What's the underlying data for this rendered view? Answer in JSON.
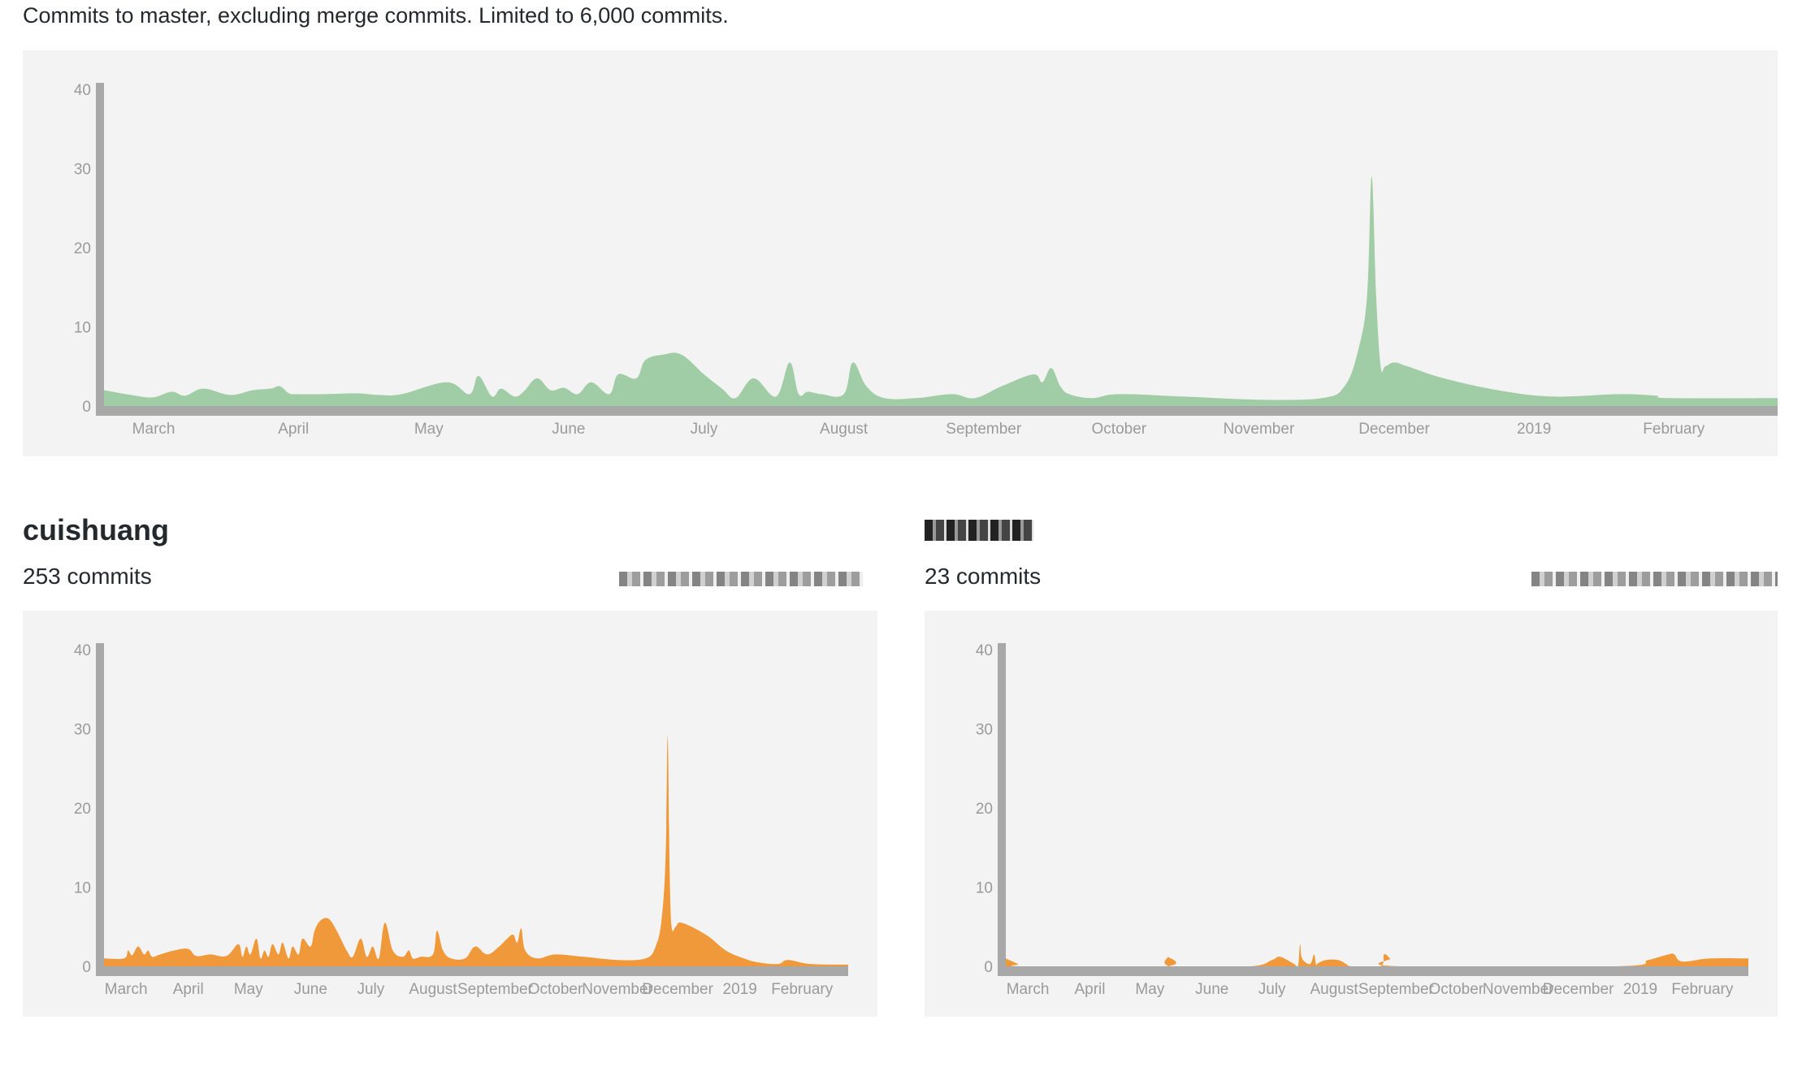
{
  "header": {
    "subtitle": "Commits to master, excluding merge commits. Limited to 6,000 commits."
  },
  "colors": {
    "main_area": "#a1cda6",
    "contributor_area": "#f0993a",
    "axis": "#a8a8a8",
    "panel_bg": "#f3f3f3"
  },
  "contributors": [
    {
      "name": "cuishuang",
      "commits_label": "253 commits"
    },
    {
      "name": "",
      "commits_label": "23 commits"
    }
  ],
  "chart_data": [
    {
      "type": "area",
      "title": "",
      "xlabel": "",
      "ylabel": "",
      "ylim": [
        0,
        40
      ],
      "yticks": [
        0,
        10,
        20,
        30,
        40
      ],
      "xlim": [
        "2018-02-18",
        "2019-02-24"
      ],
      "xticks": [
        "March",
        "April",
        "May",
        "June",
        "July",
        "August",
        "September",
        "October",
        "November",
        "December",
        "2019",
        "February"
      ],
      "grid": false,
      "series": [
        {
          "x": [
            "2018-02-18",
            "2018-02-25",
            "2018-03-01",
            "2018-03-05",
            "2018-03-08",
            "2018-03-12",
            "2018-03-18",
            "2018-03-23",
            "2018-03-27",
            "2018-03-29",
            "2018-03-31",
            "2018-04-02",
            "2018-04-08",
            "2018-04-15",
            "2018-04-20",
            "2018-04-25",
            "2018-05-05",
            "2018-05-10",
            "2018-05-12",
            "2018-05-15",
            "2018-05-17",
            "2018-05-20",
            "2018-05-22",
            "2018-05-25",
            "2018-05-28",
            "2018-05-31",
            "2018-06-03",
            "2018-06-06",
            "2018-06-10",
            "2018-06-12",
            "2018-06-16",
            "2018-06-18",
            "2018-06-22",
            "2018-06-26",
            "2018-07-01",
            "2018-07-05",
            "2018-07-08",
            "2018-07-12",
            "2018-07-17",
            "2018-07-20",
            "2018-07-22",
            "2018-07-24",
            "2018-07-27",
            "2018-08-01",
            "2018-08-03",
            "2018-08-06",
            "2018-08-10",
            "2018-08-17",
            "2018-08-25",
            "2018-08-30",
            "2018-09-05",
            "2018-09-12",
            "2018-09-14",
            "2018-09-16",
            "2018-09-18",
            "2018-09-20",
            "2018-09-25",
            "2018-10-01",
            "2018-10-15",
            "2018-11-01",
            "2018-11-15",
            "2018-11-20",
            "2018-11-23",
            "2018-11-25",
            "2018-11-26",
            "2018-11-27",
            "2018-11-28",
            "2018-11-29",
            "2018-12-01",
            "2018-12-04",
            "2018-12-12",
            "2018-12-24",
            "2019-01-05",
            "2019-01-20",
            "2019-01-28",
            "2019-01-31",
            "2019-02-24"
          ],
          "y": [
            2,
            1.3,
            1.1,
            1.8,
            1.3,
            2.2,
            1.4,
            2,
            2.2,
            2.5,
            1.6,
            1.5,
            1.5,
            1.6,
            1.4,
            1.5,
            3,
            1.5,
            3.8,
            1.2,
            2.2,
            1.2,
            1.8,
            3.5,
            2,
            2.3,
            1.5,
            3,
            1.5,
            4,
            3.5,
            5.8,
            6.5,
            6.5,
            4,
            2.2,
            1,
            3.5,
            1.2,
            5.5,
            1.5,
            1.8,
            1.5,
            1.5,
            5.5,
            2.5,
            1,
            1,
            1.5,
            1,
            2.5,
            4,
            3,
            4.8,
            2.5,
            1.5,
            1,
            1.5,
            1.2,
            0.8,
            1,
            2.5,
            7,
            14,
            29,
            14,
            5,
            5,
            5.5,
            5,
            3.5,
            2,
            1.2,
            1.5,
            1.3,
            1,
            1
          ]
        }
      ]
    },
    {
      "type": "area",
      "title": "",
      "xlabel": "",
      "ylabel": "",
      "ylim": [
        0,
        40
      ],
      "yticks": [
        0,
        10,
        20,
        30,
        40
      ],
      "xlim": [
        "2018-02-18",
        "2019-02-24"
      ],
      "xticks": [
        "March",
        "April",
        "May",
        "June",
        "July",
        "August",
        "September",
        "October",
        "November",
        "December",
        "2019",
        "February"
      ],
      "grid": false,
      "series": [
        {
          "name": "cuishuang",
          "x": [
            "2018-02-18",
            "2018-02-28",
            "2018-03-02",
            "2018-03-04",
            "2018-03-07",
            "2018-03-10",
            "2018-03-12",
            "2018-03-14",
            "2018-03-18",
            "2018-03-25",
            "2018-04-01",
            "2018-04-05",
            "2018-04-12",
            "2018-04-20",
            "2018-04-26",
            "2018-04-28",
            "2018-04-30",
            "2018-05-02",
            "2018-05-05",
            "2018-05-07",
            "2018-05-09",
            "2018-05-11",
            "2018-05-13",
            "2018-05-16",
            "2018-05-18",
            "2018-05-21",
            "2018-05-23",
            "2018-05-26",
            "2018-05-28",
            "2018-06-01",
            "2018-06-03",
            "2018-06-06",
            "2018-06-10",
            "2018-06-14",
            "2018-06-19",
            "2018-06-22",
            "2018-06-26",
            "2018-06-29",
            "2018-07-02",
            "2018-07-05",
            "2018-07-08",
            "2018-07-12",
            "2018-07-17",
            "2018-07-20",
            "2018-07-22",
            "2018-07-26",
            "2018-08-01",
            "2018-08-03",
            "2018-08-06",
            "2018-08-10",
            "2018-08-17",
            "2018-08-22",
            "2018-08-28",
            "2018-09-03",
            "2018-09-07",
            "2018-09-10",
            "2018-09-12",
            "2018-09-14",
            "2018-09-16",
            "2018-09-22",
            "2018-10-01",
            "2018-10-15",
            "2018-11-01",
            "2018-11-15",
            "2018-11-20",
            "2018-11-23",
            "2018-11-25",
            "2018-11-26",
            "2018-11-27",
            "2018-11-28",
            "2018-11-30",
            "2018-12-03",
            "2018-12-15",
            "2018-12-25",
            "2019-01-03",
            "2019-01-10",
            "2019-01-20",
            "2019-01-25",
            "2019-02-05",
            "2019-02-24"
          ],
          "y": [
            1,
            1,
            2,
            1.4,
            2.5,
            1.5,
            2,
            1.2,
            1.5,
            2,
            2.2,
            1.3,
            1.5,
            1.3,
            2.8,
            1.2,
            2.5,
            1.5,
            3.5,
            1,
            2,
            1.2,
            2.8,
            1.5,
            3,
            1,
            2.5,
            1.5,
            3.5,
            2.5,
            4.5,
            5.8,
            6,
            4.5,
            2,
            1.2,
            3.5,
            1.2,
            2.5,
            1,
            5.5,
            2,
            1.2,
            2,
            1,
            1.2,
            1.5,
            4.5,
            2,
            1,
            1,
            2.5,
            1.5,
            2.5,
            3.5,
            4,
            3,
            4.8,
            2,
            1,
            1.5,
            1.2,
            0.8,
            1,
            2.5,
            6,
            14,
            29,
            12,
            5,
            5,
            5.5,
            4,
            2,
            1,
            0.5,
            0.3,
            0.8,
            0.3,
            0.2
          ]
        }
      ]
    },
    {
      "type": "area",
      "title": "",
      "xlabel": "",
      "ylabel": "",
      "ylim": [
        0,
        40
      ],
      "yticks": [
        0,
        10,
        20,
        30,
        40
      ],
      "xlim": [
        "2018-02-18",
        "2019-02-24"
      ],
      "xticks": [
        "March",
        "April",
        "May",
        "June",
        "July",
        "August",
        "September",
        "October",
        "November",
        "December",
        "2019",
        "February"
      ],
      "grid": false,
      "series": [
        {
          "x": [
            "2018-02-18",
            "2018-02-24",
            "2018-02-27",
            "2018-05-08",
            "2018-05-10",
            "2018-05-12",
            "2018-06-20",
            "2018-07-01",
            "2018-07-05",
            "2018-07-12",
            "2018-07-14",
            "2018-07-15",
            "2018-07-16",
            "2018-07-20",
            "2018-07-22",
            "2018-07-23",
            "2018-07-24",
            "2018-07-28",
            "2018-08-03",
            "2018-08-07",
            "2018-08-10",
            "2018-08-24",
            "2018-08-26",
            "2018-08-29",
            "2018-09-02",
            "2018-12-20",
            "2019-01-05",
            "2019-01-15",
            "2019-01-18",
            "2019-01-22",
            "2019-02-05",
            "2019-02-24"
          ],
          "y": [
            1,
            0.3,
            0,
            0,
            1.2,
            0,
            0,
            0.8,
            1.2,
            0.3,
            0,
            2.8,
            1,
            0.3,
            1.5,
            0.2,
            0.4,
            0.8,
            0.8,
            0.3,
            0,
            0,
            1.5,
            1,
            0,
            0,
            0.8,
            1.5,
            1.5,
            0.6,
            1,
            1
          ]
        }
      ]
    }
  ]
}
